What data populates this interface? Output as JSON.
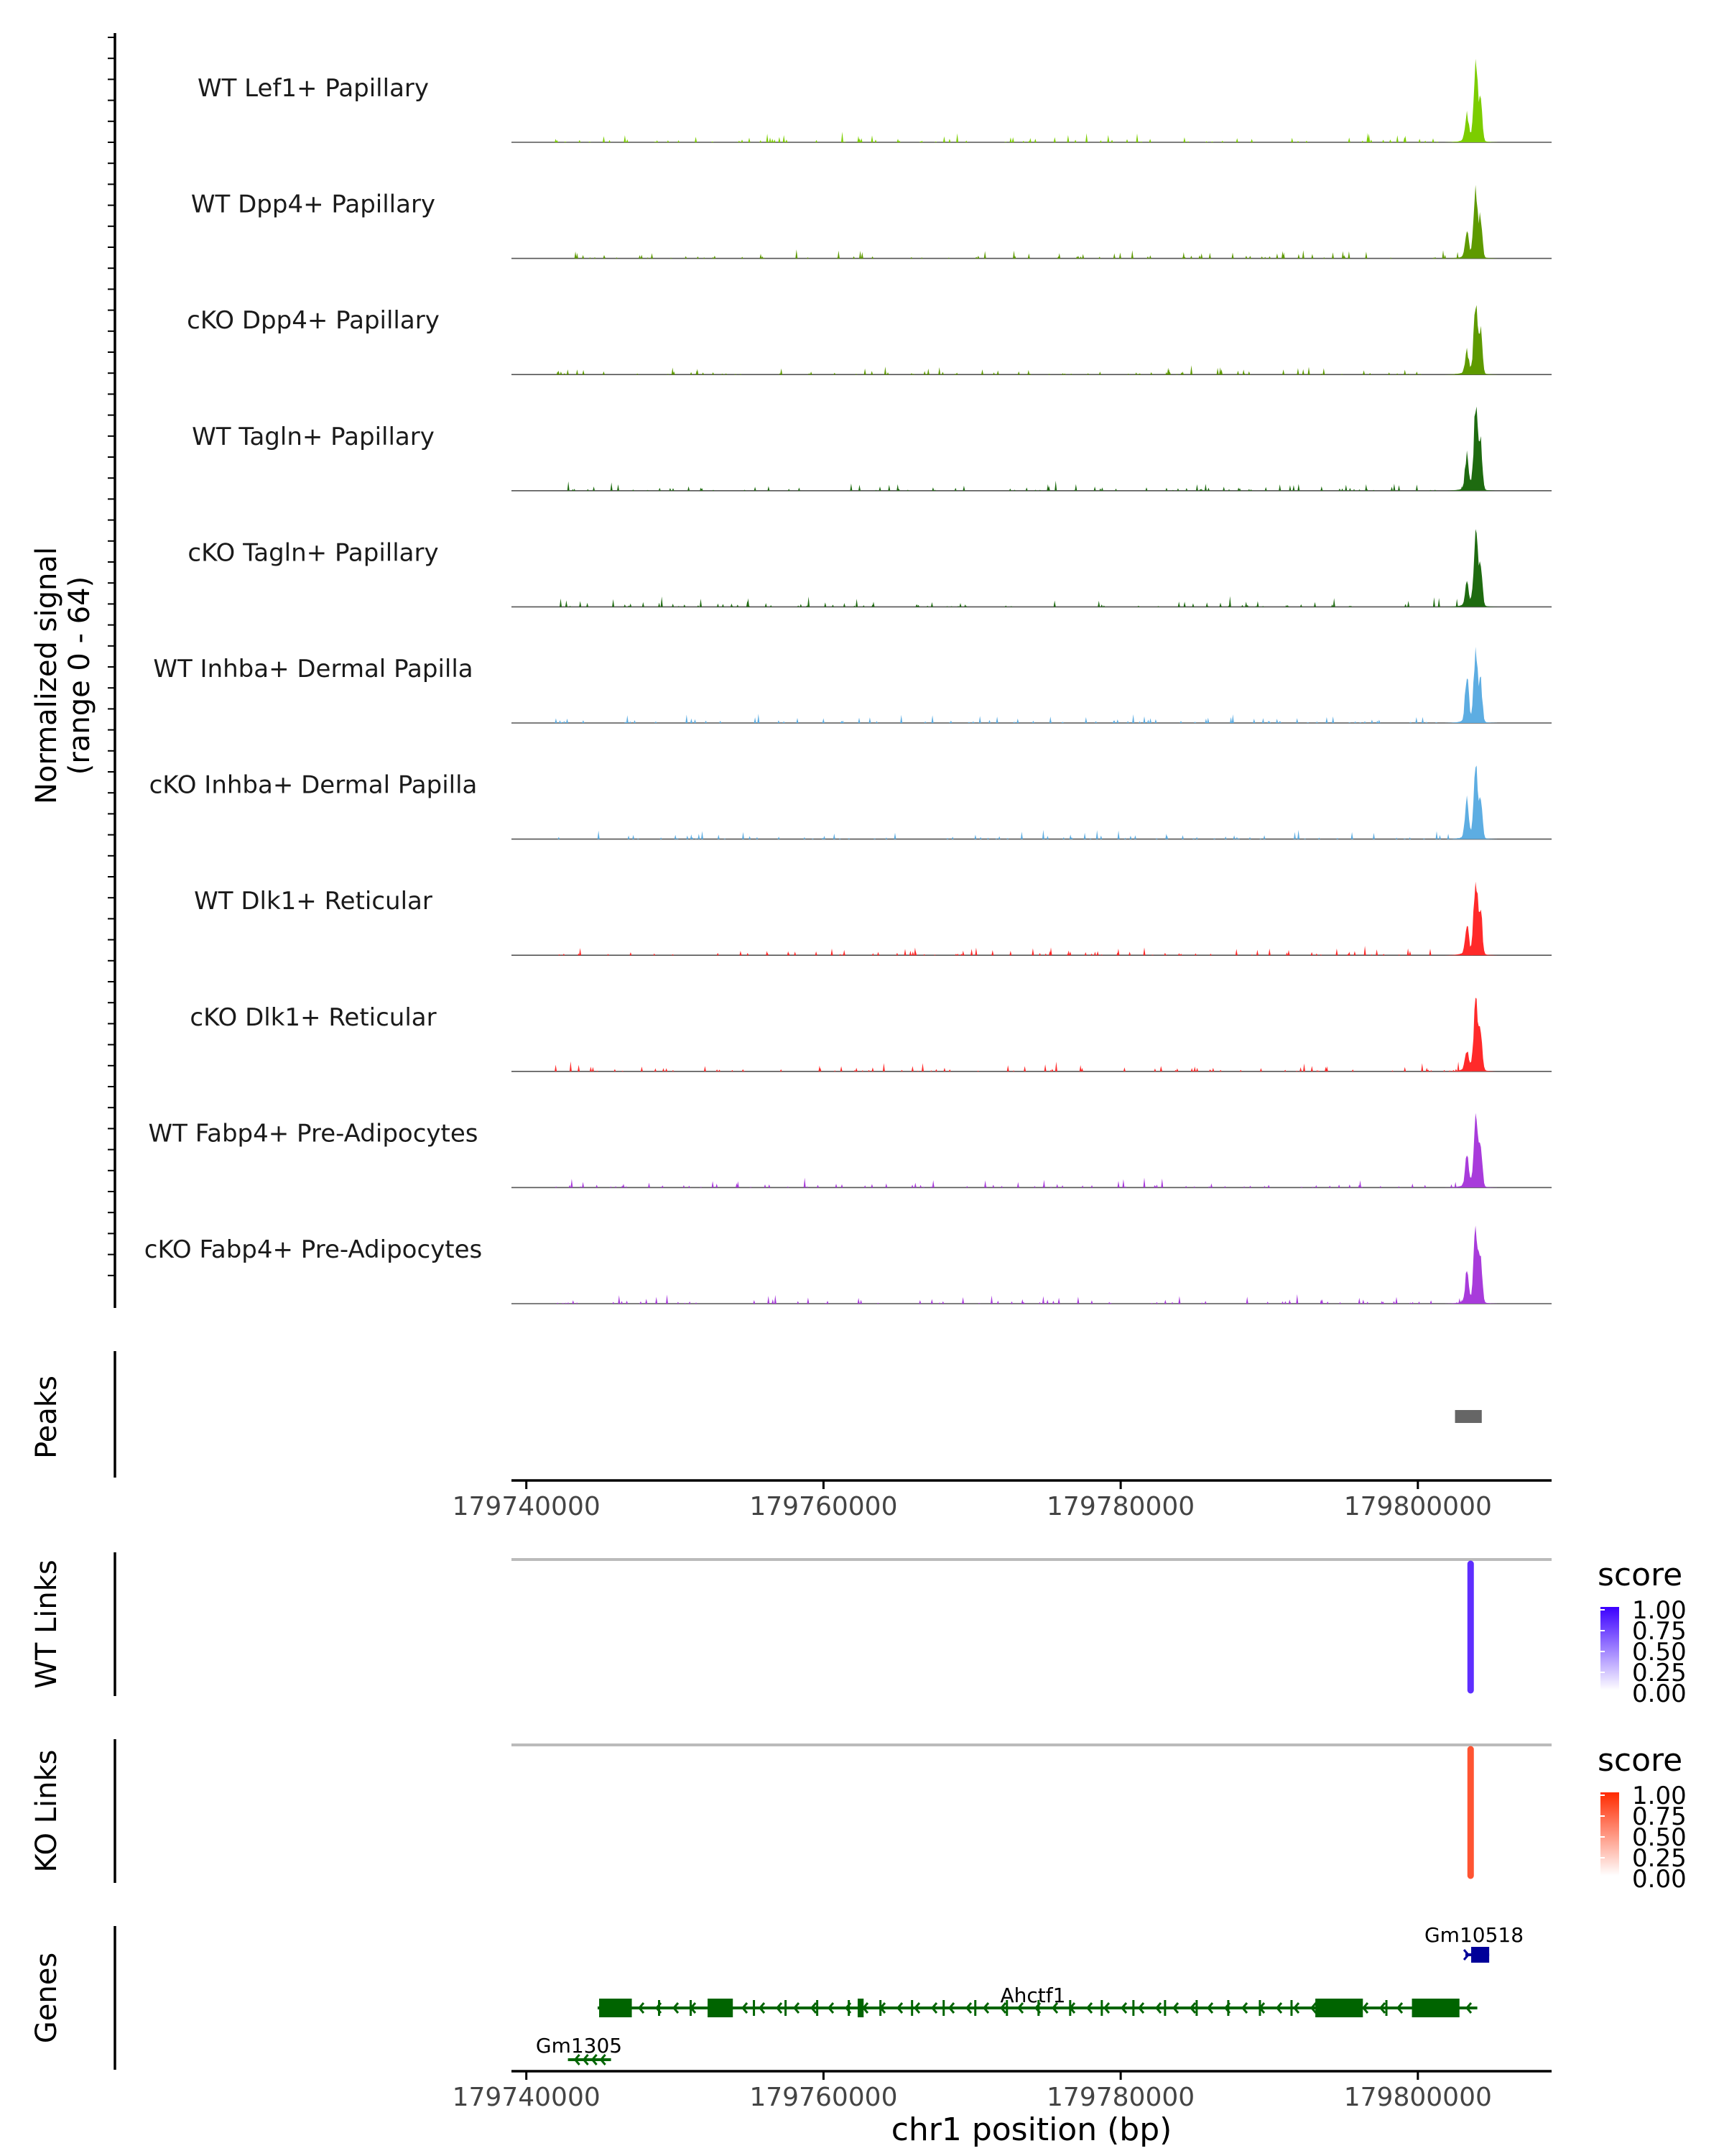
{
  "chart_data": [
    {
      "type": "area",
      "title": "",
      "ylabel": "Normalized signal",
      "ylabel_range": "(range 0 - 64)",
      "ylim": [
        0,
        64
      ],
      "xlim": [
        179739000,
        179809000
      ],
      "tracks": [
        {
          "name": "WT Lef1+ Papillary",
          "color": "#7CCD00",
          "peak_main": 55,
          "peak_second": 20
        },
        {
          "name": "WT Dpp4+ Papillary",
          "color": "#5E9A00",
          "peak_main": 52,
          "peak_second": 18
        },
        {
          "name": "cKO Dpp4+ Papillary",
          "color": "#5E9A00",
          "peak_main": 52,
          "peak_second": 16
        },
        {
          "name": "WT Tagln+ Papillary",
          "color": "#1E6B10",
          "peak_main": 60,
          "peak_second": 26
        },
        {
          "name": "cKO Tagln+ Papillary",
          "color": "#1E6B10",
          "peak_main": 55,
          "peak_second": 16
        },
        {
          "name": "WT Inhba+ Dermal Papilla",
          "color": "#5DADE2",
          "peak_main": 52,
          "peak_second": 35
        },
        {
          "name": "cKO Inhba+ Dermal Papilla",
          "color": "#5DADE2",
          "peak_main": 52,
          "peak_second": 32
        },
        {
          "name": "WT Dlk1+ Reticular",
          "color": "#FF2A2A",
          "peak_main": 58,
          "peak_second": 22
        },
        {
          "name": "cKO Dlk1+ Reticular",
          "color": "#FF2A2A",
          "peak_main": 55,
          "peak_second": 15
        },
        {
          "name": "WT Fabp4+ Pre-Adipocytes",
          "color": "#A83BDB",
          "peak_main": 52,
          "peak_second": 22
        },
        {
          "name": "cKO Fabp4+ Pre-Adipocytes",
          "color": "#A83BDB",
          "peak_main": 58,
          "peak_second": 22
        }
      ]
    },
    {
      "type": "bar",
      "track": "Peaks",
      "color": "#666666",
      "peaks": [
        {
          "start": 179802500,
          "end": 179804300
        }
      ]
    },
    {
      "type": "scatter",
      "track": "WT Links",
      "legend_title": "score",
      "legend_ticks": [
        "1.00",
        "0.75",
        "0.50",
        "0.25",
        "0.00"
      ],
      "color_high": "#3B00FF",
      "links": [
        {
          "start": 179803500,
          "end": 179803600,
          "score": 0.72
        }
      ]
    },
    {
      "type": "scatter",
      "track": "KO Links",
      "legend_title": "score",
      "legend_ticks": [
        "1.00",
        "0.75",
        "0.50",
        "0.25",
        "0.00"
      ],
      "color_high": "#FF2A00",
      "links": [
        {
          "start": 179803500,
          "end": 179803600,
          "score": 0.7
        }
      ]
    },
    {
      "type": "bar",
      "track": "Genes",
      "genes": [
        {
          "name": "Gm10518",
          "color": "#000099",
          "strand": "+",
          "start": 179803200,
          "end": 179804800
        },
        {
          "name": "Ahctf1",
          "color": "#006400",
          "strand": "-",
          "start": 179744800,
          "end": 179804000,
          "exons": [
            [
              179744900,
              179747100
            ],
            [
              179752200,
              179753900
            ],
            [
              179762300,
              179762700
            ],
            [
              179793100,
              179796300
            ],
            [
              179799600,
              179802800
            ]
          ]
        },
        {
          "name": "Gm1305",
          "color": "#006400",
          "strand": "-",
          "start": 179742800,
          "end": 179745700
        }
      ]
    }
  ],
  "axis": {
    "ticks": [
      179740000,
      179760000,
      179780000,
      179800000
    ],
    "tick_labels": [
      "179740000",
      "179760000",
      "179780000",
      "179800000"
    ],
    "xlabel": "chr1 position (bp)"
  },
  "panels": {
    "peaks_label": "Peaks",
    "wt_links_label": "WT Links",
    "ko_links_label": "KO Links",
    "genes_label": "Genes"
  }
}
